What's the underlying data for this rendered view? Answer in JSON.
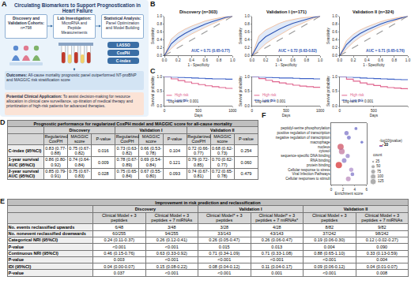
{
  "panel_a": {
    "label": "A",
    "title": "Circulating Biomarkers to Support Prognostication in Heart Failure",
    "steps": [
      {
        "title": "Discovery and Validation Cohorts:",
        "text": "n=798"
      },
      {
        "title": "Lab Investigation:",
        "text": "MicroRNA and Peptide Measurements"
      },
      {
        "title": "Statistical Analysis:",
        "text": "Panel Optimization and Model Building"
      }
    ],
    "methods": [
      "LASSO",
      "CoxPH",
      "C-index"
    ],
    "outcomes": {
      "title": "Outcomes:",
      "text": "All-cause mortality prognostic panel outperformed NT-proBNP and MAGGIC risk stratification score"
    },
    "application": {
      "title": "Potential Clinical Application:",
      "text": "To assist decision-making for resource allocation in clinical care surveillance, up-titration of medical therapy and prioritization of high-risk patients for advanced therapies."
    }
  },
  "panel_labels": [
    "B",
    "C",
    "F"
  ],
  "chart_data": [
    {
      "type": "line",
      "title": "Discovery (n=303)",
      "x_label": "1 - Specificity",
      "y_label": "Sensitivity",
      "x": [
        0,
        0.1,
        0.2,
        0.3,
        0.4,
        0.5,
        0.6,
        0.7,
        0.8,
        0.9,
        1
      ],
      "series": [
        {
          "color": "#9a9a9a",
          "line_style": "dashed",
          "values": [
            0,
            0.1,
            0.2,
            0.3,
            0.4,
            0.5,
            0.6,
            0.7,
            0.8,
            0.9,
            1
          ]
        },
        {
          "type": "band",
          "color": "#f2a36b",
          "values": [
            0,
            0.18,
            0.33,
            0.45,
            0.55,
            0.64,
            0.72,
            0.8,
            0.88,
            0.95,
            1
          ]
        },
        {
          "type": "band",
          "color": "#f2a36b",
          "values": [
            0,
            0.42,
            0.57,
            0.67,
            0.75,
            0.82,
            0.88,
            0.92,
            0.96,
            0.99,
            1
          ]
        },
        {
          "color": "#2f55b4",
          "values": [
            0,
            0.3,
            0.45,
            0.56,
            0.65,
            0.73,
            0.8,
            0.86,
            0.92,
            0.97,
            1
          ]
        }
      ],
      "annotations": [
        "AUC = 0.71 (0.65-0.77)"
      ],
      "xlim": [
        0,
        1
      ],
      "ylim": [
        0,
        1
      ],
      "xticks": [
        {
          "value": 0,
          "label": "0.0"
        },
        {
          "value": 0.2,
          "label": "0.2"
        },
        {
          "value": 0.4,
          "label": "0.4"
        },
        {
          "value": 0.6,
          "label": "0.6"
        },
        {
          "value": 0.8,
          "label": "0.8"
        },
        {
          "value": 1,
          "label": "1.0"
        }
      ],
      "yticks": [
        {
          "value": 0,
          "label": "0.0"
        },
        {
          "value": 0.2,
          "label": "0.2"
        },
        {
          "value": 0.4,
          "label": "0.4"
        },
        {
          "value": 0.6,
          "label": "0.6"
        },
        {
          "value": 0.8,
          "label": "0.8"
        },
        {
          "value": 1,
          "label": "1.0"
        }
      ],
      "grid": false
    },
    {
      "type": "line",
      "title": "Validation I (n=171)",
      "x_label": "1 - Specificity",
      "y_label": "Sensitivity",
      "x": [
        0,
        0.1,
        0.2,
        0.3,
        0.4,
        0.5,
        0.6,
        0.7,
        0.8,
        0.9,
        1
      ],
      "series": [
        {
          "color": "#9a9a9a",
          "line_style": "dashed",
          "values": [
            0,
            0.1,
            0.2,
            0.3,
            0.4,
            0.5,
            0.6,
            0.7,
            0.8,
            0.9,
            1
          ]
        },
        {
          "type": "band",
          "color": "#f2a36b",
          "values": [
            0,
            0.14,
            0.3,
            0.42,
            0.52,
            0.62,
            0.72,
            0.79,
            0.87,
            0.95,
            1
          ]
        },
        {
          "type": "band",
          "color": "#f2a36b",
          "values": [
            0,
            0.5,
            0.65,
            0.74,
            0.82,
            0.88,
            0.92,
            0.95,
            0.97,
            0.99,
            1
          ]
        },
        {
          "color": "#2f55b4",
          "values": [
            0,
            0.32,
            0.48,
            0.58,
            0.67,
            0.75,
            0.82,
            0.87,
            0.92,
            0.97,
            1
          ]
        }
      ],
      "annotations": [
        "AUC = 0.72 (0.63-0.82)"
      ],
      "xlim": [
        0,
        1
      ],
      "ylim": [
        0,
        1
      ],
      "xticks": [
        {
          "value": 0,
          "label": "0.0"
        },
        {
          "value": 0.2,
          "label": "0.2"
        },
        {
          "value": 0.4,
          "label": "0.4"
        },
        {
          "value": 0.6,
          "label": "0.6"
        },
        {
          "value": 0.8,
          "label": "0.8"
        },
        {
          "value": 1,
          "label": "1.0"
        }
      ],
      "yticks": [
        {
          "value": 0,
          "label": "0.0"
        },
        {
          "value": 0.2,
          "label": "0.2"
        },
        {
          "value": 0.4,
          "label": "0.4"
        },
        {
          "value": 0.6,
          "label": "0.6"
        },
        {
          "value": 0.8,
          "label": "0.8"
        },
        {
          "value": 1,
          "label": "1.0"
        }
      ],
      "grid": false
    },
    {
      "type": "line",
      "title": "Validation II (n=324)",
      "x_label": "1 - Specificity",
      "y_label": "Sensitivity",
      "x": [
        0,
        0.1,
        0.2,
        0.3,
        0.4,
        0.5,
        0.6,
        0.7,
        0.8,
        0.9,
        1
      ],
      "series": [
        {
          "color": "#9a9a9a",
          "line_style": "dashed",
          "values": [
            0,
            0.1,
            0.2,
            0.3,
            0.4,
            0.5,
            0.6,
            0.7,
            0.8,
            0.9,
            1
          ]
        },
        {
          "type": "band",
          "color": "#f2a36b",
          "values": [
            0,
            0.18,
            0.34,
            0.47,
            0.57,
            0.66,
            0.74,
            0.81,
            0.87,
            0.94,
            1
          ]
        },
        {
          "type": "band",
          "color": "#f2a36b",
          "values": [
            0,
            0.38,
            0.54,
            0.65,
            0.73,
            0.8,
            0.86,
            0.91,
            0.95,
            0.98,
            1
          ]
        },
        {
          "color": "#2f55b4",
          "values": [
            0,
            0.28,
            0.44,
            0.56,
            0.65,
            0.73,
            0.8,
            0.86,
            0.91,
            0.96,
            1
          ]
        }
      ],
      "annotations": [
        "AUC = 0.71 (0.65-0.76)"
      ],
      "xlim": [
        0,
        1
      ],
      "ylim": [
        0,
        1
      ],
      "xticks": [
        {
          "value": 0,
          "label": "0.0"
        },
        {
          "value": 0.2,
          "label": "0.2"
        },
        {
          "value": 0.4,
          "label": "0.4"
        },
        {
          "value": 0.6,
          "label": "0.6"
        },
        {
          "value": 0.8,
          "label": "0.8"
        },
        {
          "value": 1,
          "label": "1.0"
        }
      ],
      "yticks": [
        {
          "value": 0,
          "label": "0.0"
        },
        {
          "value": 0.2,
          "label": "0.2"
        },
        {
          "value": 0.4,
          "label": "0.4"
        },
        {
          "value": 0.6,
          "label": "0.6"
        },
        {
          "value": 0.8,
          "label": "0.8"
        },
        {
          "value": 1,
          "label": "1.0"
        }
      ],
      "grid": false
    },
    {
      "type": "step",
      "x_label": "Days",
      "y_label": "Survival probability",
      "x": [
        0,
        100,
        200,
        300,
        400,
        500,
        600,
        700,
        800,
        900,
        1000
      ],
      "series": [
        {
          "name": "High risk",
          "color": "#e0668f",
          "values": [
            1,
            0.93,
            0.87,
            0.82,
            0.77,
            0.73,
            0.69,
            0.66,
            0.63,
            0.6,
            0.58
          ]
        },
        {
          "name": "Low risk",
          "color": "#3f63c8",
          "values": [
            1,
            0.99,
            0.98,
            0.97,
            0.96,
            0.95,
            0.94,
            0.93,
            0.93,
            0.92,
            0.91
          ]
        }
      ],
      "annotations": [
        "Log-rank P < 0.001"
      ],
      "legend": "lower left",
      "xlim": [
        0,
        1000
      ],
      "ylim": [
        0,
        1
      ],
      "xticks": [
        0,
        500,
        1000
      ],
      "yticks": [
        {
          "value": 0,
          "label": "0.0"
        },
        {
          "value": 0.5,
          "label": "0.5"
        },
        {
          "value": 1,
          "label": "1.0"
        }
      ],
      "grid": false
    },
    {
      "type": "step",
      "x_label": "Days",
      "y_label": "Survival probability",
      "x": [
        0,
        100,
        200,
        300,
        400,
        500,
        600,
        700,
        800,
        900,
        1000
      ],
      "series": [
        {
          "name": "High risk",
          "color": "#e0668f",
          "values": [
            1,
            0.94,
            0.88,
            0.83,
            0.79,
            0.75,
            0.71,
            0.68,
            0.66,
            0.64,
            0.62
          ]
        },
        {
          "name": "Low risk",
          "color": "#3f63c8",
          "values": [
            1,
            0.99,
            0.98,
            0.97,
            0.96,
            0.96,
            0.95,
            0.94,
            0.94,
            0.93,
            0.93
          ]
        }
      ],
      "annotations": [
        "Log-rank P < 0.001"
      ],
      "legend": "lower left",
      "xlim": [
        0,
        1000
      ],
      "ylim": [
        0,
        1
      ],
      "xticks": [
        0,
        500,
        1000
      ],
      "yticks": [
        {
          "value": 0,
          "label": "0.0"
        },
        {
          "value": 0.5,
          "label": "0.5"
        },
        {
          "value": 1,
          "label": "1.0"
        }
      ],
      "grid": false
    },
    {
      "type": "step",
      "x_label": "Days",
      "y_label": "Survival probability",
      "x": [
        0,
        100,
        200,
        300,
        400,
        500,
        600,
        700,
        800,
        900,
        1000
      ],
      "series": [
        {
          "name": "High risk",
          "color": "#e0668f",
          "values": [
            1,
            0.92,
            0.85,
            0.79,
            0.74,
            0.7,
            0.66,
            0.63,
            0.61,
            0.59,
            0.57
          ]
        },
        {
          "name": "Low risk",
          "color": "#3f63c8",
          "values": [
            1,
            0.99,
            0.98,
            0.96,
            0.95,
            0.94,
            0.93,
            0.92,
            0.91,
            0.9,
            0.9
          ]
        }
      ],
      "annotations": [
        "Log-rank P < 0.001"
      ],
      "legend": "lower left",
      "xlim": [
        0,
        1000
      ],
      "ylim": [
        0,
        1
      ],
      "xticks": [
        0,
        500,
        1000
      ],
      "yticks": [
        {
          "value": 0,
          "label": "0.0"
        },
        {
          "value": 0.5,
          "label": "0.5"
        },
        {
          "value": 1,
          "label": "1.0"
        }
      ],
      "grid": false
    },
    {
      "type": "scatter",
      "x_label": "Enrichment score",
      "categories": [
        "peptidyl-serine phosphorylation",
        "positive regulation of transcription",
        "negative regulation of transcription",
        "macrophage",
        "nucleus",
        "cytosol",
        "sequence-specific DNA binding",
        "RNA binding",
        "protein binding",
        "Cellular response to stress",
        "Viral Infection Pathways",
        "Cellular responses to stimuli"
      ],
      "values": [
        4.2,
        2.6,
        3.0,
        5.2,
        1.6,
        1.8,
        2.8,
        2.2,
        1.3,
        3.4,
        3.6,
        2.9
      ],
      "count": [
        30,
        60,
        50,
        25,
        125,
        110,
        55,
        70,
        130,
        60,
        45,
        75
      ],
      "color_values": [
        8,
        10,
        9,
        7,
        22,
        18,
        12,
        11,
        25,
        14,
        10,
        16
      ],
      "colorbar": {
        "title": "-log10(pvalue)",
        "lim": [
          5,
          25
        ],
        "ticks": [
          10,
          20
        ]
      },
      "size_legend": {
        "title": "count",
        "values": [
          25,
          50,
          75,
          100,
          125
        ]
      },
      "xlim": [
        0,
        6
      ],
      "xticks": [
        0,
        2,
        4,
        6
      ],
      "grid": false
    }
  ],
  "table_d": {
    "label": "D",
    "caption": "Prognostic performance for regularized CoxPH model and MAGGIC score for all-cause mortality",
    "groups": [
      "Discovery",
      "Validation I",
      "Validation II"
    ],
    "subheaders": [
      "Regularized CoxPH",
      "MAGGIC score",
      "P-value"
    ],
    "rows": [
      {
        "label": "C-index (95%CI)",
        "cells": [
          "0.83 (0.77-0.88)",
          "0.75 (0.67-0.82)",
          "0.016",
          "0.73 (0.63-0.82)",
          "0.66 (0.53-0.78)",
          "0.104",
          "0.72 (0.66-0.77)",
          "0.68 (0.62-0.73)",
          "0.254"
        ]
      },
      {
        "label": "1-year survival AUC (95%CI)",
        "cells": [
          "0.86 (0.80-0.92)",
          "0.74 (0.64-0.84)",
          "0.009",
          "0.78 (0.67-0.89)",
          "0.69 (0.54-0.84)",
          "0.121",
          "0.79 (0.72-0.85)",
          "0.70 (0.62-0.77)",
          "0.060"
        ]
      },
      {
        "label": "2-year survival AUC (95%CI)",
        "cells": [
          "0.85 (0.79-0.91)",
          "0.75 (0.67-0.83)",
          "0.028",
          "0.75 (0.65-0.84)",
          "0.67 (0.55-0.80)",
          "0.093",
          "0.74 (0.67-0.81)",
          "0.72 (0.65-0.78)",
          "0.479"
        ]
      }
    ]
  },
  "table_e": {
    "label": "E",
    "title": "Improvement in risk prediction and reclassification",
    "groups": [
      "Discovery",
      "Validation I",
      "Validation II"
    ],
    "subheaders": [
      "Clinical Model + 3 peptides",
      "Clinical Model + 3 peptides + 7 miRNAs",
      "Clinical Model* + 3 peptides",
      "Clinical Model* + 3 peptides + 7 miRNAs*",
      "Clinical Model + 3 peptides",
      "Clinical Model + 3 peptides + 7 miRNAs"
    ],
    "rows": [
      {
        "label": "No. events reclassified upwards",
        "cells": [
          "6/48",
          "3/48",
          "3/28",
          "4/28",
          "8/82",
          "9/82"
        ]
      },
      {
        "label": "No. nonevent reclassified downwards",
        "cells": [
          "60/255",
          "94/255",
          "33/143",
          "43/143",
          "37/242",
          "98/242"
        ]
      },
      {
        "label": "Categorical NRI (95%CI)",
        "cells": [
          "0.24 (0.11-0.37)",
          "0.26 (0.12-0.41)",
          "0.26 (0.05-0.47)",
          "0.26 (0.06-0.47)",
          "0.19 (0.06-0.30)",
          "0.12 (-0.02-0.27)"
        ]
      },
      {
        "label": "P-value",
        "cells": [
          "<0.001",
          "<0.001",
          "0.015",
          "0.013",
          "0.004",
          "0.090"
        ]
      },
      {
        "label": "Continuous NRI (95%CI)",
        "cells": [
          "0.46 (0.15-0.76)",
          "0.63 (0.33-0.92)",
          "0.71 (0.34-1.09)",
          "0.71 (0.33-1.08)",
          "0.88 (0.65-1.10)",
          "0.33 (0.13-0.59)"
        ]
      },
      {
        "label": "P-value",
        "cells": [
          "0.003",
          "<0.001",
          "<0.001",
          "<0.001",
          "<0.001",
          "0.004"
        ]
      },
      {
        "label": "IDI (95%CI)",
        "cells": [
          "0.04 (0.00-0.07)",
          "0.15 (0.08-0.22)",
          "0.08 (0.04-0.12)",
          "0.11 (0.04-0.17)",
          "0.09 (0.06-0.12)",
          "0.04 (0.01-0.07)"
        ]
      },
      {
        "label": "P-value",
        "cells": [
          "0.037",
          "<0.001",
          "<0.001",
          "0.001",
          "<0.001",
          "0.008"
        ]
      }
    ]
  }
}
